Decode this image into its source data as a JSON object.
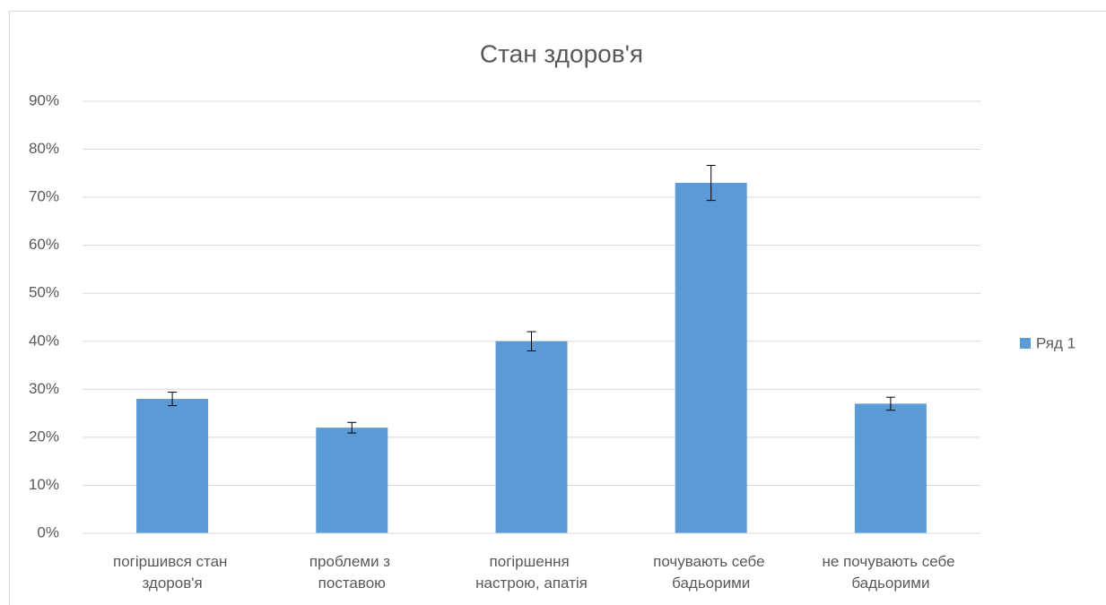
{
  "chart_data": {
    "type": "bar",
    "title": "Стан здоров'я",
    "categories": [
      "погіршився стан здоров'я",
      "проблеми з поставою",
      "погіршення настрою, апатія",
      "почувають себе бадьорими",
      "не почувають себе бадьорими"
    ],
    "series": [
      {
        "name": "Ряд 1",
        "color": "#5b9bd5",
        "values": [
          28,
          22,
          40,
          73,
          27
        ],
        "errors": [
          1.4,
          1.1,
          2,
          3.65,
          1.35
        ]
      }
    ],
    "ylim": [
      0,
      90
    ],
    "yticks": [
      {
        "value": 0,
        "label": "0%"
      },
      {
        "value": 10,
        "label": "10%"
      },
      {
        "value": 20,
        "label": "20%"
      },
      {
        "value": 30,
        "label": "30%"
      },
      {
        "value": 40,
        "label": "40%"
      },
      {
        "value": 50,
        "label": "50%"
      },
      {
        "value": 60,
        "label": "60%"
      },
      {
        "value": 70,
        "label": "70%"
      },
      {
        "value": 80,
        "label": "80%"
      },
      {
        "value": 90,
        "label": "90%"
      }
    ],
    "grid": true,
    "legend": "right"
  }
}
